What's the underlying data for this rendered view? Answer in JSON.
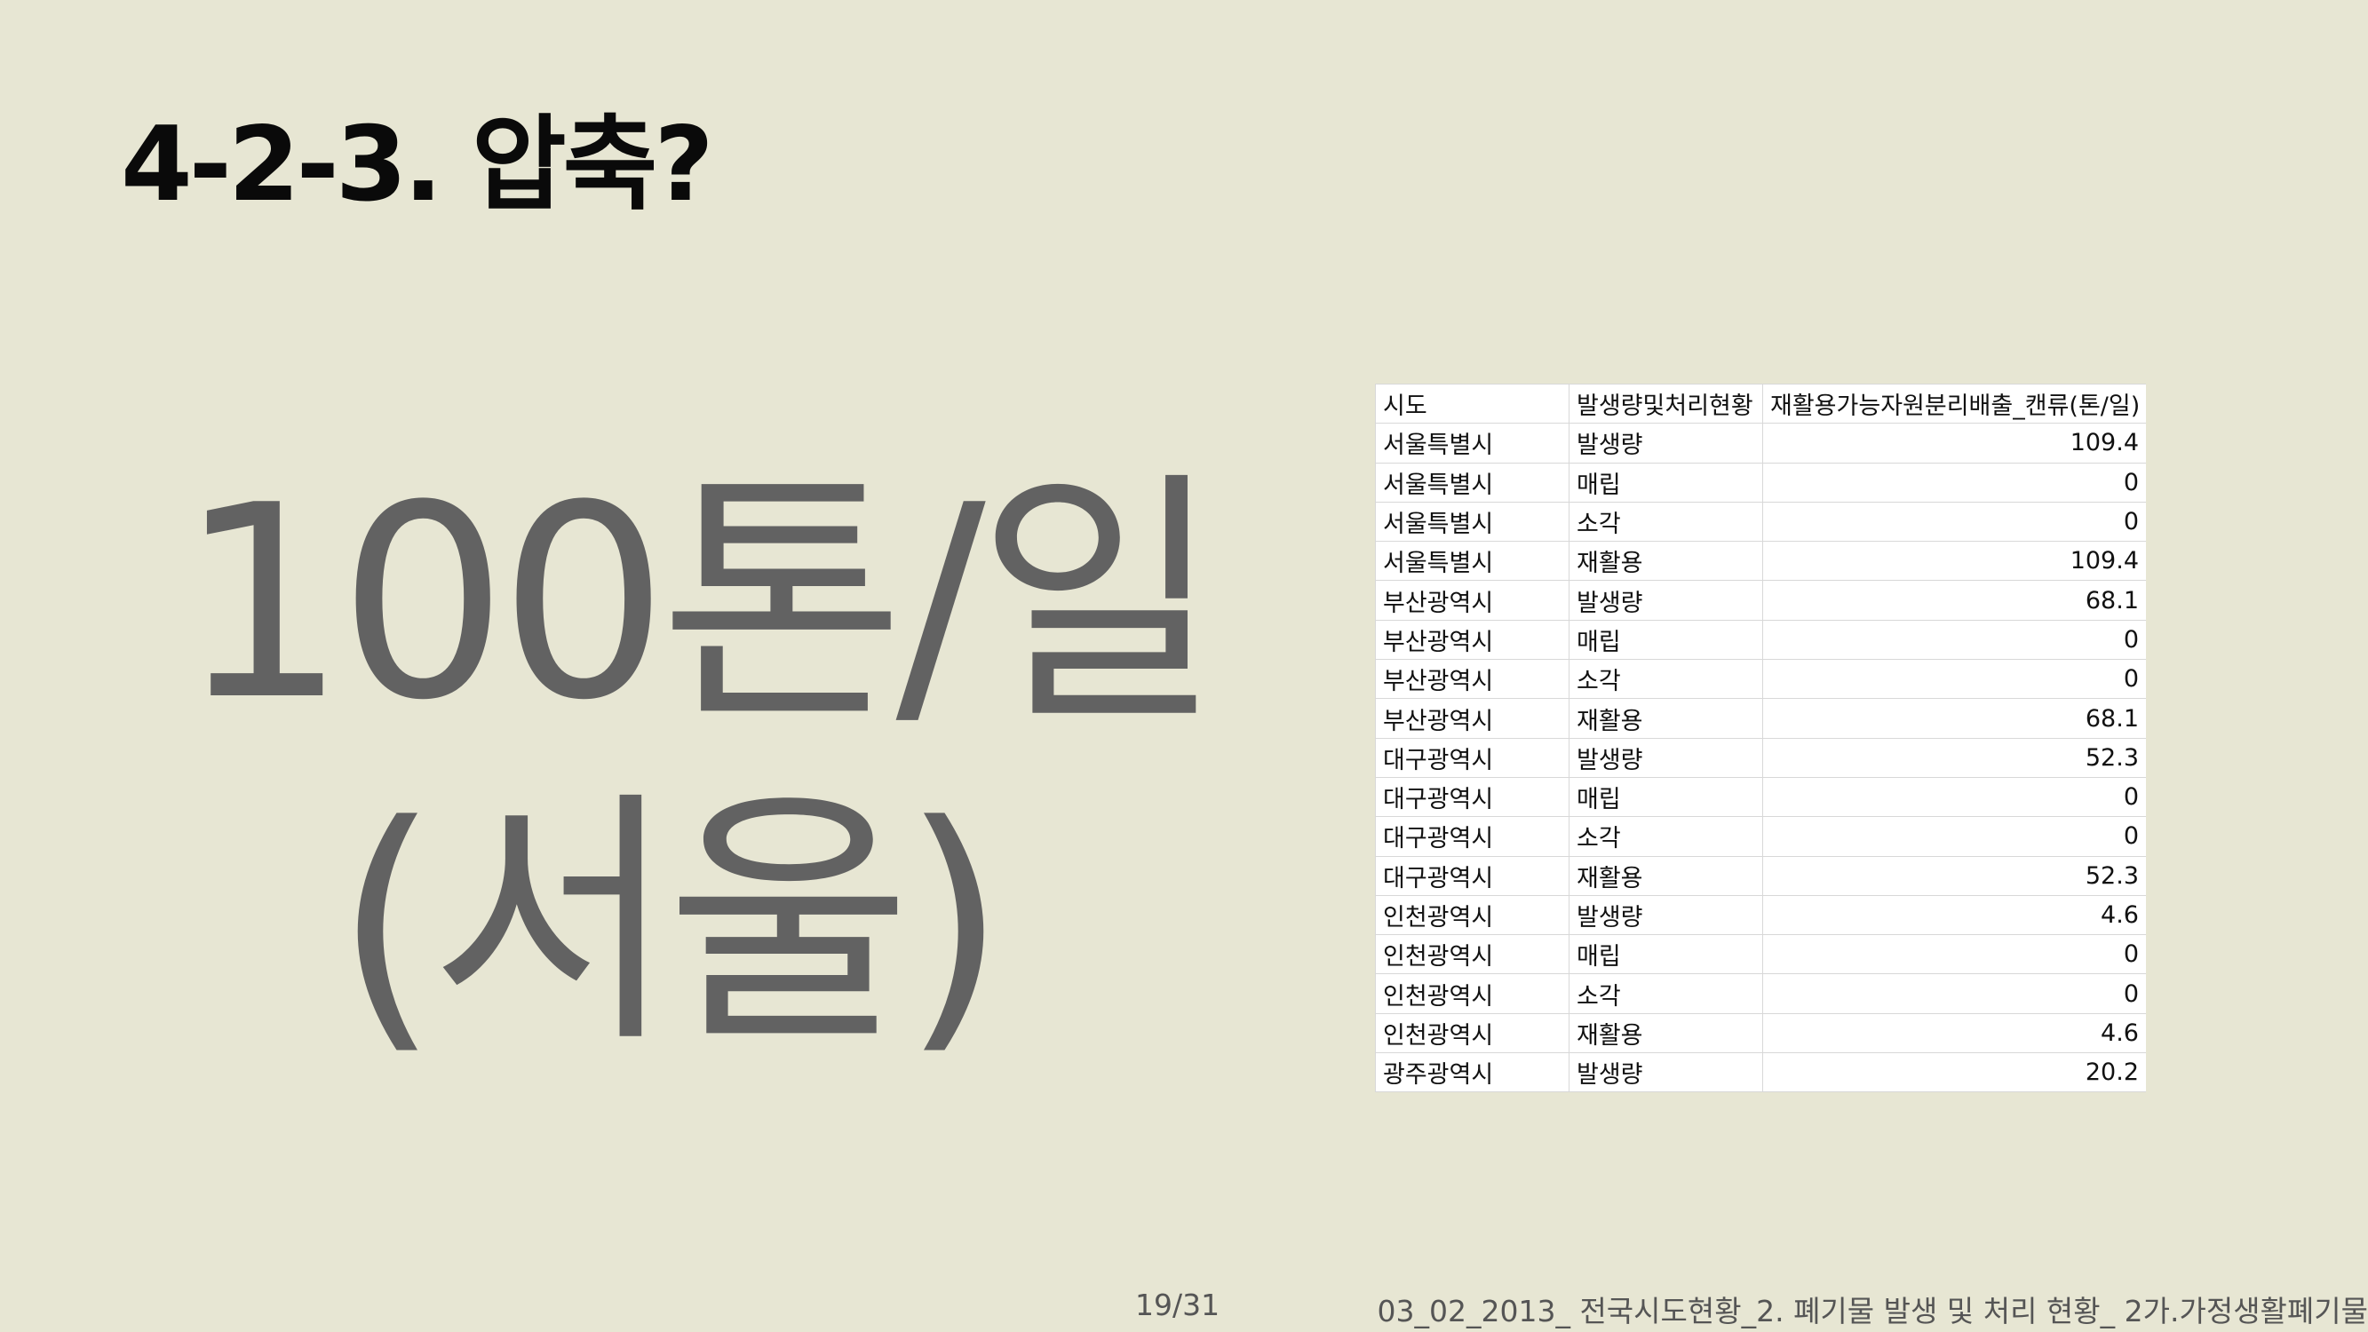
{
  "slide": {
    "title": "4-2-3. 압축?",
    "big_text_line1": "100톤/일",
    "big_text_line2": "(서울)"
  },
  "table": {
    "headers": [
      "시도",
      "발생량및처리현황",
      "재활용가능자원분리배출_캔류(톤/일)"
    ],
    "rows": [
      [
        "서울특별시",
        "발생량",
        "109.4"
      ],
      [
        "서울특별시",
        "매립",
        "0"
      ],
      [
        "서울특별시",
        "소각",
        "0"
      ],
      [
        "서울특별시",
        "재활용",
        "109.4"
      ],
      [
        "부산광역시",
        "발생량",
        "68.1"
      ],
      [
        "부산광역시",
        "매립",
        "0"
      ],
      [
        "부산광역시",
        "소각",
        "0"
      ],
      [
        "부산광역시",
        "재활용",
        "68.1"
      ],
      [
        "대구광역시",
        "발생량",
        "52.3"
      ],
      [
        "대구광역시",
        "매립",
        "0"
      ],
      [
        "대구광역시",
        "소각",
        "0"
      ],
      [
        "대구광역시",
        "재활용",
        "52.3"
      ],
      [
        "인천광역시",
        "발생량",
        "4.6"
      ],
      [
        "인천광역시",
        "매립",
        "0"
      ],
      [
        "인천광역시",
        "소각",
        "0"
      ],
      [
        "인천광역시",
        "재활용",
        "4.6"
      ],
      [
        "광주광역시",
        "발생량",
        "20.2"
      ]
    ]
  },
  "footer": {
    "page": "19/31",
    "source": "03_02_2013_ 전국시도현황_2. 폐기물 발생 및 처리 현황_ 2가.가정생활폐기물"
  }
}
